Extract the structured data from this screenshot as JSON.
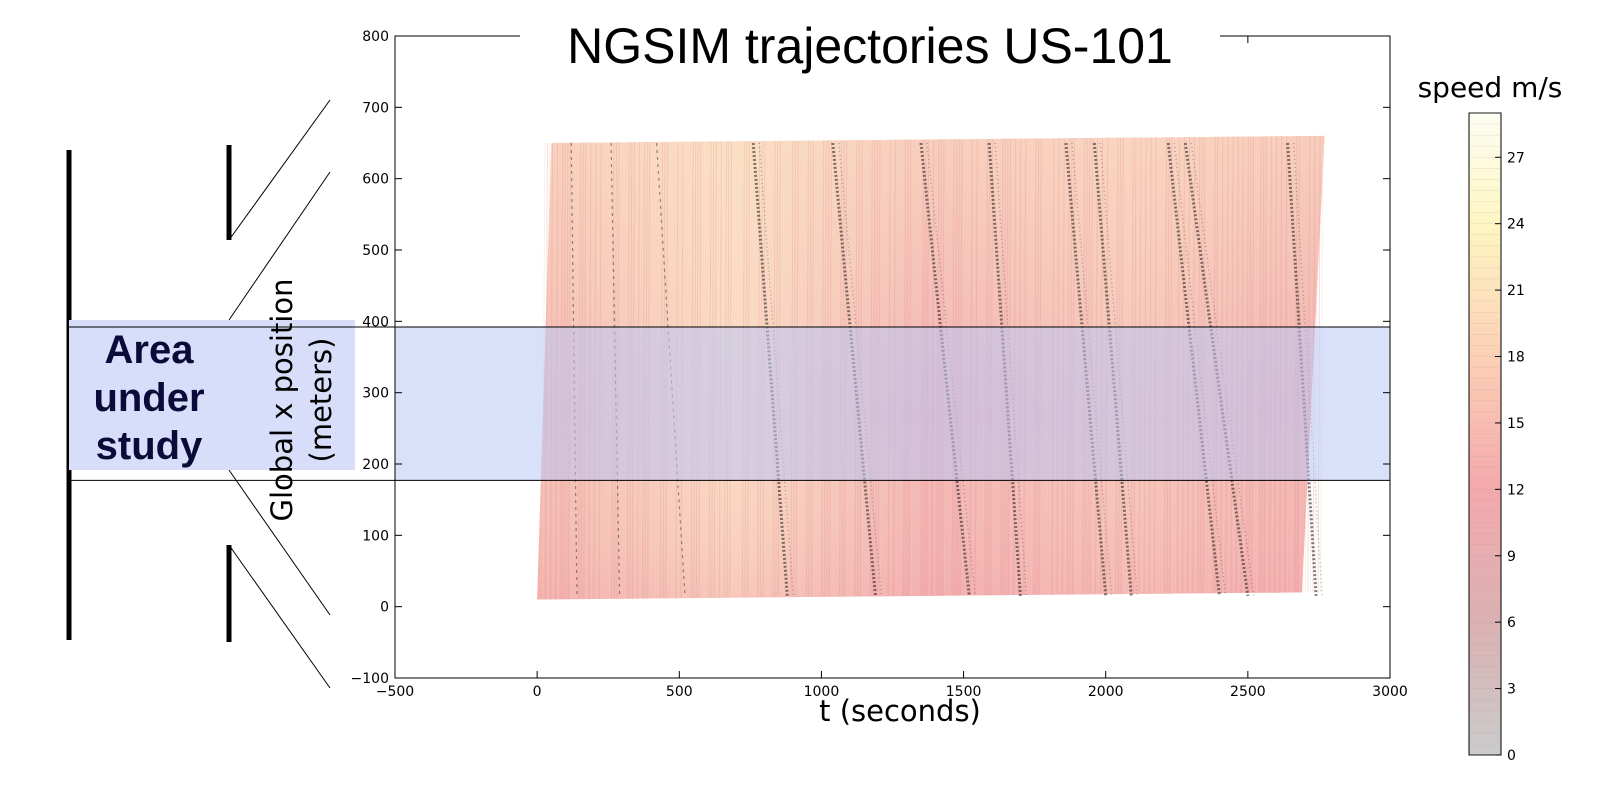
{
  "chart_data": {
    "type": "scatter",
    "title": "NGSIM trajectories US-101",
    "xlabel": "t (seconds)",
    "ylabel_line1": "Global x position",
    "ylabel_line2": "(meters)",
    "xlim": [
      -500,
      3000
    ],
    "ylim": [
      -100,
      800
    ],
    "xticks": [
      -500,
      0,
      500,
      1000,
      1500,
      2000,
      2500,
      3000
    ],
    "yticks": [
      -100,
      0,
      100,
      200,
      300,
      400,
      500,
      600,
      700,
      800
    ],
    "xtick_labels": [
      "−500",
      "0",
      "500",
      "1000",
      "1500",
      "2000",
      "2500",
      "3000"
    ],
    "ytick_labels": [
      "−100",
      "0",
      "100",
      "200",
      "300",
      "400",
      "500",
      "600",
      "700",
      "800"
    ],
    "grid": false,
    "trajectory_region": {
      "corners": [
        [
          0,
          10
        ],
        [
          2690,
          20
        ],
        [
          2770,
          660
        ],
        [
          50,
          650
        ]
      ],
      "color_low_speed": "#e9a3a6",
      "color_high_speed": "#fde6c8"
    },
    "congestion_waves": [
      {
        "t_top": 760,
        "t_bottom": 880
      },
      {
        "t_top": 1040,
        "t_bottom": 1190
      },
      {
        "t_top": 1350,
        "t_bottom": 1520
      },
      {
        "t_top": 1590,
        "t_bottom": 1700
      },
      {
        "t_top": 1860,
        "t_bottom": 2000
      },
      {
        "t_top": 1960,
        "t_bottom": 2090
      },
      {
        "t_top": 2220,
        "t_bottom": 2400
      },
      {
        "t_top": 2280,
        "t_bottom": 2500
      },
      {
        "t_top": 2640,
        "t_bottom": 2740
      },
      {
        "t_top": 120,
        "t_bottom": 140
      },
      {
        "t_top": 260,
        "t_bottom": 290
      },
      {
        "t_top": 420,
        "t_bottom": 520
      }
    ],
    "study_area": {
      "y_range": [
        177,
        392
      ],
      "label_lines": [
        "Area",
        "under",
        "study"
      ],
      "color": "#d8def9"
    },
    "colorbar": {
      "title": "speed m/s",
      "min": 0,
      "max": 29,
      "ticks": [
        0,
        3,
        6,
        9,
        12,
        15,
        18,
        21,
        24,
        27
      ],
      "stops": [
        {
          "value": 0,
          "color": "#cbcbcb"
        },
        {
          "value": 6,
          "color": "#dbb1b3"
        },
        {
          "value": 12,
          "color": "#f4a9ac"
        },
        {
          "value": 18,
          "color": "#fcd0b6"
        },
        {
          "value": 24,
          "color": "#fef6c2"
        },
        {
          "value": 29,
          "color": "#fdfdf3"
        }
      ]
    }
  }
}
